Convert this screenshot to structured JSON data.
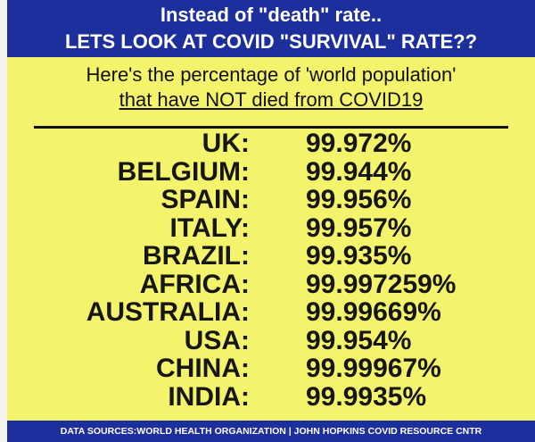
{
  "header": {
    "line1": "Instead of \"death\" rate..",
    "line2": "LETS LOOK AT COVID \"SURVIVAL\" RATE??"
  },
  "subtitle": {
    "line1": "Here's the percentage of 'world population'",
    "line2": "that have NOT died from COVID19"
  },
  "table": {
    "rows": [
      [
        "UK:",
        "99.972%"
      ],
      [
        "BELGIUM:",
        "99.944%"
      ],
      [
        "SPAIN:",
        "99.956%"
      ],
      [
        "ITALY:",
        "99.957%"
      ],
      [
        "BRAZIL:",
        "99.935%"
      ],
      [
        "AFRICA:",
        "99.997259%"
      ],
      [
        "AUSTRALIA:",
        "99.99669%"
      ],
      [
        "USA:",
        "99.954%"
      ],
      [
        "CHINA:",
        "99.99967%"
      ],
      [
        "INDIA:",
        "99.9935%"
      ]
    ]
  },
  "footer": {
    "text": "DATA SOURCES:WORLD HEALTH ORGANIZATION | JOHN HOPKINS COVID RESOURCE CNTR"
  }
}
